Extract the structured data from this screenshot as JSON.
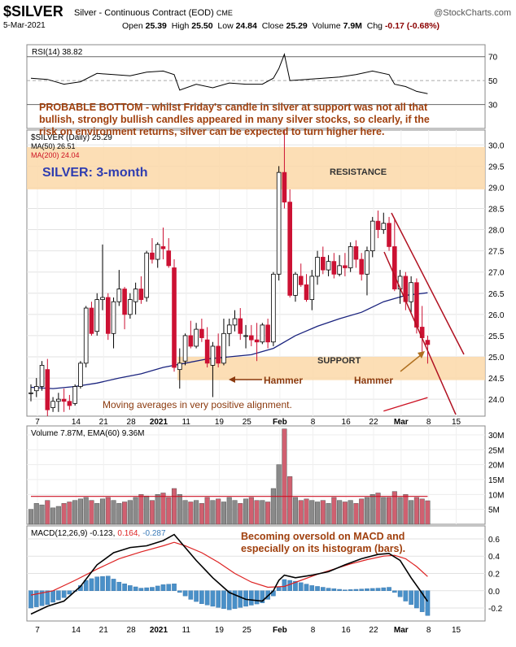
{
  "header": {
    "symbol": "$SILVER",
    "description": "Silver - Continuous Contract (EOD)",
    "exchange": "CME",
    "source": "@StockCharts.com",
    "date": "5-Mar-2021",
    "open_label": "Open",
    "open": "25.39",
    "high_label": "High",
    "high": "25.50",
    "low_label": "Low",
    "low": "24.84",
    "close_label": "Close",
    "close": "25.29",
    "volume_label": "Volume",
    "volume": "7.9M",
    "chg_label": "Chg",
    "chg": "-0.17 (-0.68%)"
  },
  "colors": {
    "up": "#ffffff",
    "down": "#cc1133",
    "ma50": "#1a237e",
    "ma200": "#cc1122",
    "band": "#fbd8a8",
    "annotation": "#a0400e",
    "title_blue": "#2f3db0",
    "macd_hist": "#4a90c8",
    "volume_up": "#8a8a8a",
    "volume_down": "#d06070"
  },
  "rsi_panel": {
    "legend": "RSI(14) 38.82",
    "ticks": [
      "70",
      "50",
      "30"
    ]
  },
  "annotations": {
    "probable_bottom": [
      "PROBABLE BOTTOM - whilst Friday's candle in silver at support was not all that",
      "bullish, strongly bullish candles appeared in many silver stocks, so clearly, if the",
      "risk on environment returns, silver can be expected to turn higher here."
    ],
    "title": "SILVER: 3-month",
    "resistance": "RESISTANCE",
    "support": "SUPPORT",
    "hammer1": "Hammer",
    "hammer2": "Hammer",
    "moving_averages": "Moving averages in very positive alignment.",
    "macd_note": [
      "Becoming oversold on MACD and",
      "especially on its histogram (bars)."
    ]
  },
  "price_panel": {
    "legend_main": "$SILVER (Daily) 25.29",
    "legend_ma50": "MA(50) 26.51",
    "legend_ma200": "MA(200) 24.04",
    "ticks": [
      "30.0",
      "29.5",
      "29.0",
      "28.5",
      "28.0",
      "27.5",
      "27.0",
      "26.5",
      "26.0",
      "25.5",
      "25.0",
      "24.5",
      "24.0"
    ]
  },
  "volume_panel": {
    "legend": "Volume 7.87M, EMA(60) 9.36M",
    "ticks": [
      "30M",
      "25M",
      "20M",
      "15M",
      "10M",
      "5M"
    ]
  },
  "macd_panel": {
    "legend_main": "MACD(12,26,9) -0.123,",
    "legend_signal": "0.164,",
    "legend_hist": "-0.287",
    "ticks": [
      "0.6",
      "0.4",
      "0.2",
      "0.0",
      "-0.2"
    ]
  },
  "x_axis_labels": [
    {
      "label": "7",
      "bold": false
    },
    {
      "label": "14",
      "bold": false
    },
    {
      "label": "21",
      "bold": false
    },
    {
      "label": "28",
      "bold": false
    },
    {
      "label": "2021",
      "bold": true
    },
    {
      "label": "11",
      "bold": false
    },
    {
      "label": "19",
      "bold": false
    },
    {
      "label": "25",
      "bold": false
    },
    {
      "label": "Feb",
      "bold": true
    },
    {
      "label": "8",
      "bold": false
    },
    {
      "label": "16",
      "bold": false
    },
    {
      "label": "22",
      "bold": false
    },
    {
      "label": "Mar",
      "bold": true
    },
    {
      "label": "8",
      "bold": false
    },
    {
      "label": "15",
      "bold": false
    }
  ],
  "chart_data": {
    "type": "candlestick",
    "title": "SILVER: 3-month",
    "ylim": [
      23.6,
      30.35
    ],
    "ohlc": [
      [
        24.15,
        24.35,
        23.95,
        24.15
      ],
      [
        24.2,
        24.5,
        24.05,
        24.3
      ],
      [
        24.3,
        24.9,
        24.2,
        24.8
      ],
      [
        24.7,
        24.95,
        23.6,
        23.75
      ],
      [
        23.8,
        24.05,
        23.7,
        23.95
      ],
      [
        23.95,
        24.15,
        23.7,
        24.0
      ],
      [
        24.0,
        24.25,
        23.7,
        23.95
      ],
      [
        23.95,
        24.1,
        23.75,
        23.85
      ],
      [
        23.9,
        24.35,
        23.85,
        24.3
      ],
      [
        24.3,
        24.9,
        24.25,
        24.85
      ],
      [
        24.85,
        26.2,
        24.75,
        26.15
      ],
      [
        26.15,
        26.3,
        25.5,
        25.55
      ],
      [
        25.6,
        26.5,
        25.5,
        26.35
      ],
      [
        26.35,
        27.65,
        26.1,
        26.4
      ],
      [
        26.4,
        26.5,
        25.4,
        25.55
      ],
      [
        25.55,
        26.4,
        25.2,
        26.3
      ],
      [
        26.3,
        27.05,
        26.2,
        26.6
      ],
      [
        26.6,
        26.65,
        25.65,
        26.0
      ],
      [
        26.0,
        26.5,
        25.9,
        26.35
      ],
      [
        26.3,
        26.75,
        26.0,
        26.6
      ],
      [
        26.6,
        26.9,
        26.25,
        26.35
      ],
      [
        26.4,
        27.5,
        26.3,
        27.45
      ],
      [
        27.45,
        27.8,
        27.2,
        27.3
      ],
      [
        27.3,
        27.7,
        27.1,
        27.65
      ],
      [
        27.6,
        28.05,
        27.3,
        27.55
      ],
      [
        27.5,
        27.8,
        27.1,
        27.15
      ],
      [
        27.1,
        27.3,
        24.65,
        24.75
      ],
      [
        24.7,
        25.2,
        24.25,
        24.85
      ],
      [
        24.9,
        25.55,
        24.8,
        25.5
      ],
      [
        25.5,
        25.85,
        25.2,
        25.25
      ],
      [
        25.25,
        25.8,
        25.2,
        25.65
      ],
      [
        25.65,
        25.9,
        25.35,
        25.45
      ],
      [
        25.4,
        25.7,
        24.75,
        24.85
      ],
      [
        24.8,
        25.35,
        24.05,
        25.25
      ],
      [
        25.25,
        25.55,
        24.75,
        24.85
      ],
      [
        24.85,
        25.9,
        24.8,
        25.55
      ],
      [
        25.55,
        25.9,
        25.25,
        25.75
      ],
      [
        25.75,
        26.1,
        25.6,
        25.9
      ],
      [
        25.9,
        26.15,
        25.4,
        25.55
      ],
      [
        25.5,
        25.75,
        25.2,
        25.5
      ],
      [
        25.5,
        25.75,
        25.25,
        25.4
      ],
      [
        25.4,
        25.8,
        24.9,
        25.35
      ],
      [
        25.35,
        25.8,
        25.3,
        25.75
      ],
      [
        25.75,
        25.9,
        25.2,
        25.35
      ],
      [
        25.35,
        27.0,
        25.25,
        26.95
      ],
      [
        26.95,
        29.5,
        26.8,
        29.35
      ],
      [
        29.35,
        30.35,
        28.5,
        28.65
      ],
      [
        28.65,
        28.95,
        26.4,
        26.45
      ],
      [
        26.45,
        27.0,
        26.3,
        26.95
      ],
      [
        26.9,
        27.2,
        26.65,
        26.7
      ],
      [
        26.7,
        26.95,
        26.3,
        26.35
      ],
      [
        26.35,
        27.05,
        26.1,
        26.9
      ],
      [
        26.9,
        27.5,
        26.7,
        27.35
      ],
      [
        27.35,
        27.6,
        26.95,
        27.05
      ],
      [
        27.05,
        27.4,
        26.9,
        27.25
      ],
      [
        27.25,
        27.45,
        26.85,
        26.95
      ],
      [
        26.95,
        27.4,
        26.9,
        27.15
      ],
      [
        27.15,
        27.45,
        26.9,
        27.1
      ],
      [
        27.1,
        27.7,
        27.0,
        27.6
      ],
      [
        27.6,
        27.75,
        27.1,
        27.3
      ],
      [
        27.3,
        27.45,
        26.8,
        26.95
      ],
      [
        26.95,
        27.6,
        26.45,
        27.5
      ],
      [
        27.5,
        28.3,
        27.35,
        28.2
      ],
      [
        28.2,
        28.45,
        27.8,
        28.0
      ],
      [
        28.0,
        28.4,
        27.9,
        28.15
      ],
      [
        28.15,
        28.3,
        27.5,
        27.6
      ],
      [
        27.6,
        28.25,
        26.55,
        26.6
      ],
      [
        26.6,
        27.05,
        26.25,
        26.9
      ],
      [
        26.9,
        27.0,
        26.1,
        26.3
      ],
      [
        26.3,
        26.9,
        26.05,
        26.75
      ],
      [
        26.75,
        26.85,
        25.55,
        25.7
      ],
      [
        25.7,
        26.2,
        25.1,
        25.45
      ],
      [
        25.39,
        25.5,
        24.84,
        25.29
      ]
    ],
    "ma50_approx": [
      [
        0,
        24.28
      ],
      [
        4,
        24.25
      ],
      [
        8,
        24.3
      ],
      [
        12,
        24.38
      ],
      [
        16,
        24.5
      ],
      [
        20,
        24.6
      ],
      [
        24,
        24.75
      ],
      [
        28,
        24.85
      ],
      [
        32,
        24.95
      ],
      [
        36,
        25.0
      ],
      [
        40,
        25.05
      ],
      [
        44,
        25.2
      ],
      [
        48,
        25.5
      ],
      [
        52,
        25.72
      ],
      [
        56,
        25.9
      ],
      [
        60,
        26.05
      ],
      [
        64,
        26.3
      ],
      [
        68,
        26.45
      ],
      [
        72,
        26.51
      ]
    ],
    "ma200_approx": [
      [
        64,
        23.72
      ],
      [
        68,
        23.88
      ],
      [
        72,
        24.04
      ]
    ],
    "rsi_approx": [
      [
        0,
        52
      ],
      [
        3,
        51
      ],
      [
        6,
        47
      ],
      [
        9,
        49
      ],
      [
        12,
        56
      ],
      [
        15,
        55
      ],
      [
        18,
        54
      ],
      [
        21,
        57
      ],
      [
        24,
        58
      ],
      [
        26,
        55
      ],
      [
        27,
        42
      ],
      [
        30,
        47
      ],
      [
        33,
        44
      ],
      [
        36,
        48
      ],
      [
        39,
        47
      ],
      [
        42,
        47
      ],
      [
        44,
        52
      ],
      [
        45,
        60
      ],
      [
        46,
        72
      ],
      [
        47,
        50
      ],
      [
        50,
        51
      ],
      [
        53,
        52
      ],
      [
        56,
        53
      ],
      [
        59,
        55
      ],
      [
        62,
        58
      ],
      [
        65,
        55
      ],
      [
        66,
        47
      ],
      [
        68,
        45
      ],
      [
        70,
        41
      ],
      [
        72,
        39
      ]
    ],
    "volume_M": [
      5,
      7,
      6.5,
      8,
      5.5,
      6,
      7,
      7.5,
      8,
      8.5,
      9,
      8,
      7,
      8.5,
      9,
      8,
      7,
      7.5,
      8,
      9,
      10,
      9.5,
      8,
      10,
      10.5,
      9,
      12,
      10,
      8,
      7.5,
      8,
      7,
      9,
      8,
      8.5,
      7.5,
      9,
      8,
      7,
      8.5,
      9,
      8,
      8,
      7.5,
      12,
      20,
      32,
      16,
      9,
      8,
      8.5,
      8,
      7.5,
      8,
      7,
      9,
      8,
      7.5,
      8,
      7,
      8.5,
      9,
      10,
      10.5,
      9,
      9,
      11,
      9,
      10,
      8,
      9,
      8.5,
      7.9
    ],
    "volume_ema_M": 9.36,
    "macd_approx": [
      [
        0,
        -0.27
      ],
      [
        3,
        -0.18
      ],
      [
        6,
        -0.12
      ],
      [
        9,
        0.05
      ],
      [
        12,
        0.3
      ],
      [
        15,
        0.44
      ],
      [
        18,
        0.5
      ],
      [
        21,
        0.52
      ],
      [
        24,
        0.58
      ],
      [
        26,
        0.65
      ],
      [
        28,
        0.5
      ],
      [
        30,
        0.35
      ],
      [
        33,
        0.15
      ],
      [
        36,
        -0.02
      ],
      [
        39,
        -0.1
      ],
      [
        42,
        -0.12
      ],
      [
        44,
        0.0
      ],
      [
        45,
        0.12
      ],
      [
        46,
        0.18
      ],
      [
        48,
        0.15
      ],
      [
        51,
        0.18
      ],
      [
        54,
        0.22
      ],
      [
        57,
        0.3
      ],
      [
        60,
        0.37
      ],
      [
        63,
        0.42
      ],
      [
        65,
        0.43
      ],
      [
        67,
        0.35
      ],
      [
        69,
        0.15
      ],
      [
        71,
        -0.03
      ],
      [
        72,
        -0.123
      ]
    ],
    "signal_approx": [
      [
        0,
        -0.05
      ],
      [
        4,
        0.0
      ],
      [
        8,
        0.12
      ],
      [
        12,
        0.25
      ],
      [
        16,
        0.37
      ],
      [
        20,
        0.45
      ],
      [
        24,
        0.52
      ],
      [
        26,
        0.56
      ],
      [
        28,
        0.52
      ],
      [
        31,
        0.44
      ],
      [
        34,
        0.33
      ],
      [
        37,
        0.2
      ],
      [
        40,
        0.1
      ],
      [
        43,
        0.04
      ],
      [
        46,
        0.05
      ],
      [
        49,
        0.12
      ],
      [
        52,
        0.19
      ],
      [
        55,
        0.25
      ],
      [
        58,
        0.31
      ],
      [
        61,
        0.36
      ],
      [
        64,
        0.4
      ],
      [
        66,
        0.41
      ],
      [
        68,
        0.37
      ],
      [
        70,
        0.28
      ],
      [
        72,
        0.164
      ]
    ],
    "hist_approx": [
      [
        0,
        -0.2
      ],
      [
        3,
        -0.16
      ],
      [
        6,
        -0.08
      ],
      [
        8,
        0.0
      ],
      [
        10,
        0.12
      ],
      [
        12,
        0.16
      ],
      [
        14,
        0.17
      ],
      [
        16,
        0.1
      ],
      [
        18,
        0.06
      ],
      [
        20,
        0.03
      ],
      [
        22,
        0.04
      ],
      [
        24,
        0.07
      ],
      [
        26,
        0.08
      ],
      [
        27,
        -0.02
      ],
      [
        29,
        -0.1
      ],
      [
        31,
        -0.15
      ],
      [
        33,
        -0.18
      ],
      [
        36,
        -0.22
      ],
      [
        39,
        -0.18
      ],
      [
        42,
        -0.14
      ],
      [
        44,
        -0.06
      ],
      [
        45,
        0.04
      ],
      [
        46,
        0.13
      ],
      [
        48,
        0.11
      ],
      [
        51,
        0.06
      ],
      [
        54,
        0.03
      ],
      [
        57,
        0.01
      ],
      [
        60,
        0.02
      ],
      [
        63,
        0.03
      ],
      [
        65,
        0.04
      ],
      [
        66,
        -0.02
      ],
      [
        68,
        -0.12
      ],
      [
        70,
        -0.2
      ],
      [
        72,
        -0.287
      ]
    ]
  }
}
